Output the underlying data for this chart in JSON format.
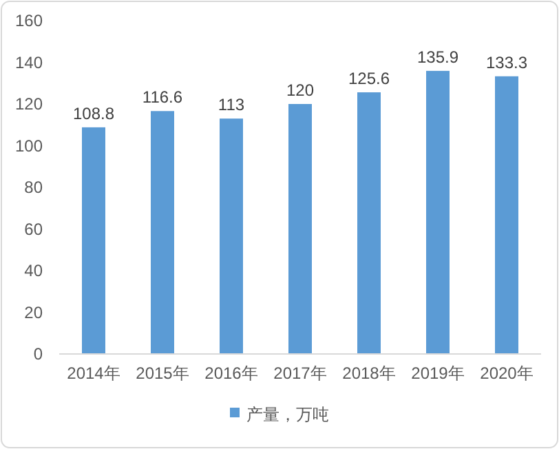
{
  "chart_data": {
    "type": "bar",
    "categories": [
      "2014年",
      "2015年",
      "2016年",
      "2017年",
      "2018年",
      "2019年",
      "2020年"
    ],
    "series": [
      {
        "name": "产量，万吨",
        "color": "#5b9bd5",
        "values": [
          108.8,
          116.6,
          113,
          120,
          125.6,
          135.9,
          133.3
        ]
      }
    ],
    "ylim": [
      0,
      160
    ],
    "yticks": [
      0,
      20,
      40,
      60,
      80,
      100,
      120,
      140,
      160
    ],
    "data_labels": true,
    "legend": "bottom"
  }
}
